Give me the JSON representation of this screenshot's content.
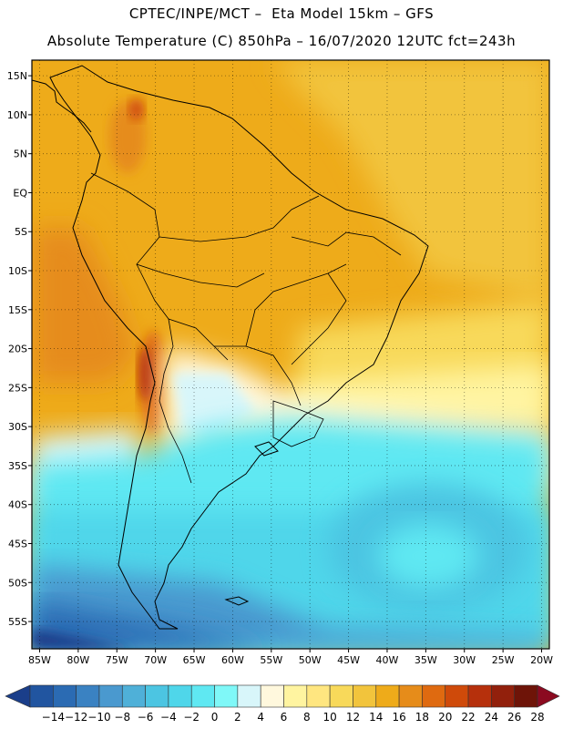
{
  "title": {
    "line1": "CPTEC/INPE/MCT –  Eta Model 15km – GFS",
    "line2": "Absolute Temperature (C) 850hPa – 16/07/2020 12UTC fct=243h"
  },
  "map": {
    "lon_range": [
      -86,
      -19
    ],
    "lat_range": [
      -58.5,
      17
    ],
    "y_ticks": [
      "15N",
      "10N",
      "5N",
      "EQ",
      "5S",
      "10S",
      "15S",
      "20S",
      "25S",
      "30S",
      "35S",
      "40S",
      "45S",
      "50S",
      "55S"
    ],
    "x_ticks": [
      "85W",
      "80W",
      "75W",
      "70W",
      "65W",
      "60W",
      "55W",
      "50W",
      "45W",
      "40W",
      "35W",
      "30W",
      "25W",
      "20W"
    ],
    "gridlines": true
  },
  "colorbar": {
    "labels": [
      "-14",
      "-12",
      "-10",
      "-8",
      "-6",
      "-4",
      "-2",
      "0",
      "2",
      "4",
      "6",
      "8",
      "10",
      "12",
      "14",
      "16",
      "18",
      "20",
      "22",
      "24",
      "26",
      "28"
    ],
    "colors": [
      "#1a3e8a",
      "#2155a0",
      "#2b6bb3",
      "#3a82c2",
      "#4a99cf",
      "#4fb0d8",
      "#4cc5e2",
      "#4fd6ea",
      "#5fe8f2",
      "#7ff8f8",
      "#d8f6fa",
      "#fff8dd",
      "#fff4a0",
      "#ffe680",
      "#f8d95a",
      "#f2c43c",
      "#eeab1a",
      "#e68c1a",
      "#df6a10",
      "#cf4a0a",
      "#b6300c",
      "#92200c",
      "#6e1408",
      "#8b0a20"
    ]
  }
}
